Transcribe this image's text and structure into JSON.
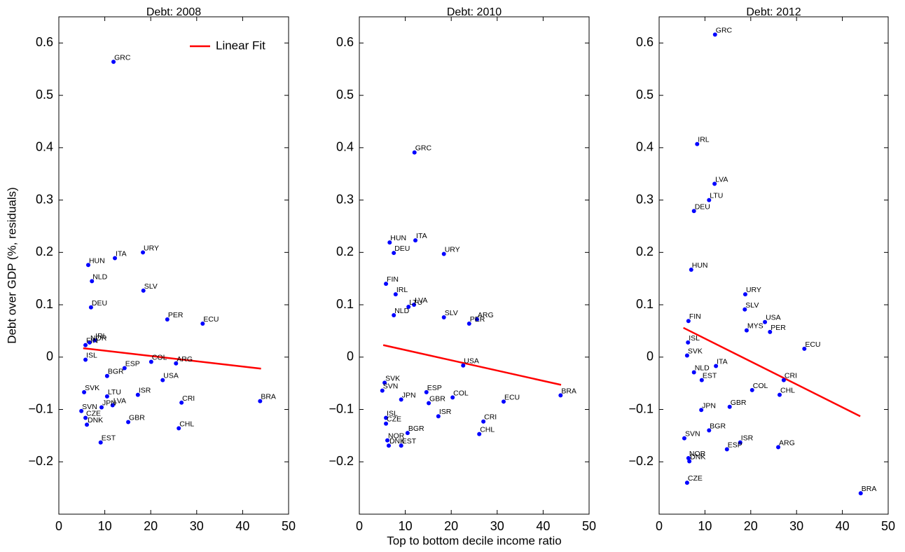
{
  "chart_data": [
    {
      "type": "scatter",
      "title": "Debt: 2008",
      "ylabel": "Debt over GDP (%, residuals)",
      "color": "#0000ff",
      "legend": "upper right",
      "point_labels": [
        "GRC",
        "URY",
        "ITA",
        "HUN",
        "NLD",
        "SLV",
        "DEU",
        "PER",
        "ECU",
        "IRL",
        "NOR",
        "FIN",
        "ISL",
        "COL",
        "ESP",
        "ARG",
        "BGR",
        "USA",
        "SVK",
        "LTU",
        "ISR",
        "CRI",
        "BRA",
        "LVA",
        "JPN",
        "SVN",
        "CZE",
        "GBR",
        "DNK",
        "CHL",
        "EST"
      ],
      "x": [
        11.9,
        18.3,
        12.2,
        6.4,
        7.2,
        18.4,
        7.0,
        23.6,
        31.3,
        7.8,
        6.7,
        5.8,
        5.8,
        20.1,
        14.3,
        25.5,
        10.5,
        22.6,
        5.5,
        10.5,
        17.2,
        26.7,
        43.8,
        11.7,
        9.3,
        4.9,
        5.8,
        15.1,
        6.1,
        26.1,
        9.1
      ],
      "values": [
        0.564,
        0.2,
        0.189,
        0.176,
        0.145,
        0.127,
        0.095,
        0.072,
        0.064,
        0.032,
        0.028,
        0.023,
        -0.005,
        -0.009,
        -0.021,
        -0.012,
        -0.036,
        -0.044,
        -0.067,
        -0.075,
        -0.072,
        -0.087,
        -0.084,
        -0.092,
        -0.096,
        -0.103,
        -0.116,
        -0.124,
        -0.129,
        -0.136,
        -0.163
      ],
      "fit": {
        "name": "Linear Fit",
        "color": "#ff0000",
        "x": [
          5.3,
          44
        ],
        "values": [
          0.017,
          -0.022
        ]
      },
      "xlim": [
        0,
        50
      ],
      "xticks": [
        0,
        10,
        20,
        30,
        40,
        50
      ],
      "ylim": [
        -0.3,
        0.65
      ],
      "yticks": [
        {
          "value": -0.2,
          "label": "−0.2"
        },
        {
          "value": -0.1,
          "label": "−0.1"
        },
        0,
        0.1,
        0.2,
        0.3,
        0.4,
        0.5,
        0.6
      ]
    },
    {
      "type": "scatter",
      "title": "Debt: 2010",
      "xlabel": "Top to bottom decile income ratio",
      "color": "#0000ff",
      "point_labels": [
        "GRC",
        "ITA",
        "HUN",
        "DEU",
        "URY",
        "FIN",
        "IRL",
        "LVA",
        "LTU",
        "NLD",
        "SLV",
        "ARG",
        "PER",
        "USA",
        "SVK",
        "SVN",
        "ESP",
        "COL",
        "JPN",
        "BRA",
        "ECU",
        "GBR",
        "ISL",
        "ISR",
        "CZE",
        "CRI",
        "BGR",
        "CHL",
        "NOR",
        "DNK",
        "EST"
      ],
      "x": [
        12.0,
        12.2,
        6.6,
        7.5,
        18.4,
        5.8,
        7.9,
        11.9,
        10.7,
        7.5,
        18.4,
        25.6,
        23.9,
        22.6,
        5.5,
        5.0,
        14.6,
        20.3,
        9.1,
        43.8,
        31.4,
        15.1,
        5.8,
        17.2,
        5.8,
        27.0,
        10.5,
        26.1,
        6.1,
        6.4,
        9.1
      ],
      "values": [
        0.391,
        0.223,
        0.219,
        0.199,
        0.197,
        0.14,
        0.12,
        0.1,
        0.096,
        0.08,
        0.076,
        0.072,
        0.064,
        -0.016,
        -0.049,
        -0.064,
        -0.067,
        -0.077,
        -0.081,
        -0.073,
        -0.085,
        -0.088,
        -0.116,
        -0.113,
        -0.127,
        -0.123,
        -0.145,
        -0.147,
        -0.159,
        -0.169,
        -0.169
      ],
      "fit": {
        "color": "#ff0000",
        "x": [
          5.2,
          43.9
        ],
        "values": [
          0.023,
          -0.053
        ]
      },
      "xlim": [
        0,
        50
      ],
      "xticks": [
        0,
        10,
        20,
        30,
        40,
        50
      ],
      "ylim": [
        -0.3,
        0.65
      ],
      "yticks": [
        {
          "value": -0.2,
          "label": "−0.2"
        },
        {
          "value": -0.1,
          "label": "−0.1"
        },
        0,
        0.1,
        0.2,
        0.3,
        0.4,
        0.5,
        0.6
      ]
    },
    {
      "type": "scatter",
      "title": "Debt: 2012",
      "color": "#0000ff",
      "point_labels": [
        "GRC",
        "IRL",
        "LVA",
        "LTU",
        "DEU",
        "HUN",
        "URY",
        "SLV",
        "FIN",
        "USA",
        "MYS",
        "PER",
        "ISL",
        "ECU",
        "SVK",
        "ITA",
        "NLD",
        "EST",
        "CRI",
        "COL",
        "CHL",
        "GBR",
        "JPN",
        "BGR",
        "ISR",
        "SVN",
        "ESP",
        "ARG",
        "NOR",
        "DNK",
        "CZE",
        "BRA"
      ],
      "x": [
        12.2,
        8.3,
        12.1,
        10.9,
        7.6,
        7.0,
        18.8,
        18.7,
        6.4,
        23.1,
        19.1,
        24.2,
        6.3,
        31.7,
        6.1,
        12.4,
        7.6,
        9.3,
        27.2,
        20.3,
        26.3,
        15.4,
        9.2,
        10.9,
        17.7,
        5.5,
        14.8,
        26.0,
        6.4,
        6.6,
        6.1,
        44.0
      ],
      "values": [
        0.616,
        0.407,
        0.331,
        0.3,
        0.279,
        0.167,
        0.12,
        0.091,
        0.069,
        0.067,
        0.051,
        0.048,
        0.028,
        0.016,
        0.003,
        -0.017,
        -0.029,
        -0.044,
        -0.044,
        -0.063,
        -0.072,
        -0.095,
        -0.101,
        -0.14,
        -0.163,
        -0.155,
        -0.176,
        -0.172,
        -0.193,
        -0.199,
        -0.24,
        -0.26
      ],
      "fit": {
        "color": "#ff0000",
        "x": [
          5.3,
          43.9
        ],
        "values": [
          0.056,
          -0.113
        ]
      },
      "xlim": [
        0,
        50
      ],
      "xticks": [
        0,
        10,
        20,
        30,
        40,
        50
      ],
      "ylim": [
        -0.3,
        0.65
      ],
      "yticks": [
        {
          "value": -0.2,
          "label": "−0.2"
        },
        {
          "value": -0.1,
          "label": "−0.1"
        },
        0,
        0.1,
        0.2,
        0.3,
        0.4,
        0.5,
        0.6
      ]
    }
  ]
}
